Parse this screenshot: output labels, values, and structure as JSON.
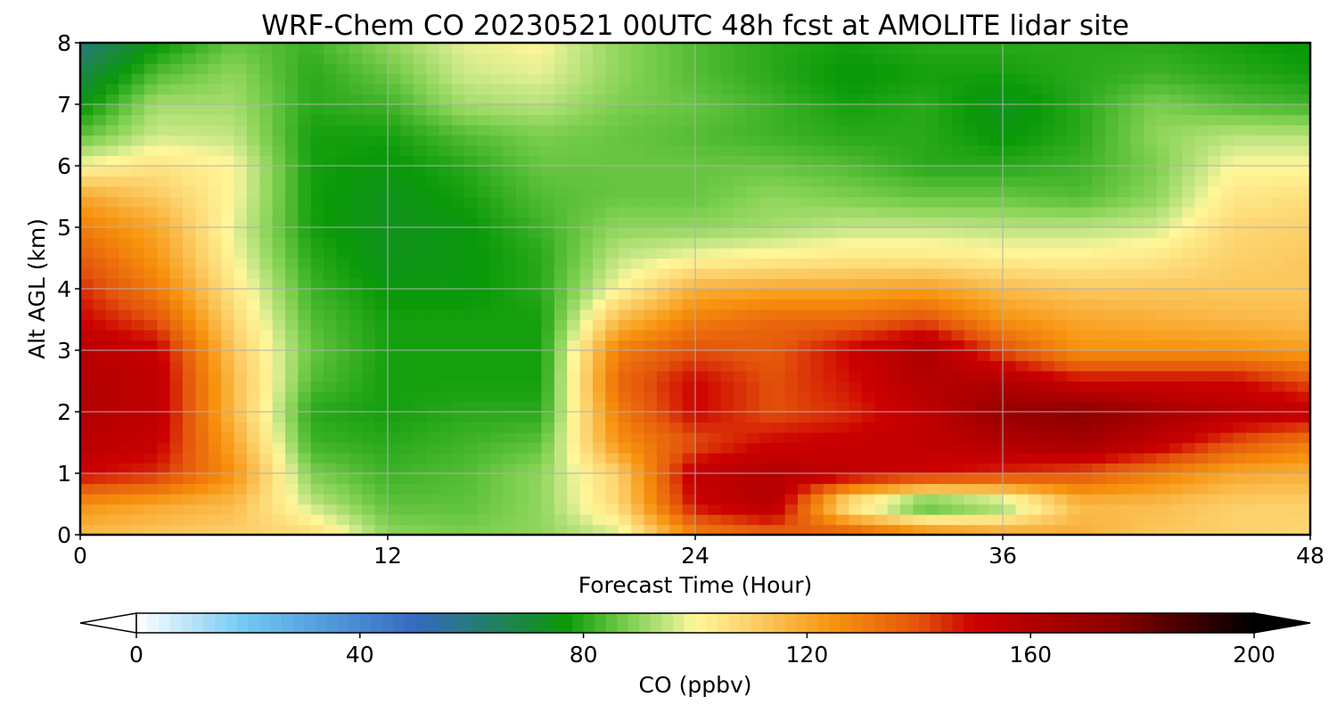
{
  "chart_data": {
    "type": "heatmap",
    "title": "WRF-Chem CO  20230521 00UTC 48h fcst at AMOLITE lidar site",
    "xlabel": "Forecast Time (Hour)",
    "ylabel": "Alt AGL (km)",
    "xlim": [
      0,
      48
    ],
    "ylim": [
      0,
      8
    ],
    "x_ticks": [
      0,
      12,
      24,
      36,
      48
    ],
    "y_ticks": [
      0,
      1,
      2,
      3,
      4,
      5,
      6,
      7,
      8
    ],
    "grid": true,
    "x": [
      0,
      3,
      6,
      9,
      12,
      15,
      18,
      21,
      24,
      27,
      30,
      33,
      36,
      39,
      42,
      45,
      48
    ],
    "y": [
      0,
      0.5,
      1,
      1.5,
      2,
      2.5,
      3,
      3.5,
      4,
      4.5,
      5,
      5.5,
      6,
      6.5,
      7,
      7.5,
      8
    ],
    "z": [
      [
        115,
        112,
        110,
        108,
        90,
        88,
        90,
        96,
        128,
        135,
        140,
        130,
        122,
        118,
        112,
        110,
        108
      ],
      [
        125,
        120,
        115,
        95,
        85,
        85,
        90,
        108,
        150,
        160,
        100,
        78,
        88,
        115,
        115,
        110,
        110
      ],
      [
        150,
        145,
        125,
        88,
        82,
        84,
        90,
        110,
        155,
        160,
        155,
        150,
        145,
        140,
        130,
        120,
        118
      ],
      [
        158,
        152,
        120,
        82,
        80,
        82,
        85,
        125,
        140,
        150,
        152,
        155,
        160,
        165,
        155,
        140,
        130
      ],
      [
        160,
        155,
        115,
        80,
        78,
        80,
        80,
        130,
        150,
        140,
        145,
        155,
        170,
        175,
        165,
        158,
        155
      ],
      [
        160,
        155,
        115,
        84,
        78,
        78,
        78,
        135,
        150,
        140,
        148,
        160,
        160,
        150,
        150,
        150,
        140
      ],
      [
        158,
        152,
        112,
        86,
        78,
        78,
        78,
        130,
        140,
        138,
        150,
        162,
        140,
        125,
        125,
        125,
        122
      ],
      [
        150,
        140,
        108,
        84,
        78,
        78,
        78,
        115,
        130,
        135,
        135,
        140,
        125,
        120,
        118,
        116,
        115
      ],
      [
        145,
        130,
        104,
        82,
        76,
        76,
        80,
        100,
        118,
        120,
        120,
        122,
        115,
        112,
        112,
        112,
        112
      ],
      [
        138,
        124,
        100,
        80,
        74,
        76,
        80,
        95,
        100,
        102,
        104,
        104,
        102,
        102,
        104,
        110,
        112
      ],
      [
        130,
        120,
        98,
        78,
        74,
        76,
        82,
        90,
        90,
        92,
        95,
        95,
        94,
        94,
        96,
        108,
        110
      ],
      [
        120,
        112,
        100,
        78,
        74,
        78,
        84,
        86,
        86,
        90,
        88,
        86,
        86,
        84,
        90,
        104,
        106
      ],
      [
        100,
        105,
        100,
        78,
        76,
        80,
        86,
        86,
        86,
        86,
        84,
        80,
        80,
        82,
        88,
        100,
        100
      ],
      [
        85,
        96,
        95,
        78,
        78,
        84,
        88,
        86,
        84,
        82,
        80,
        80,
        76,
        80,
        90,
        94,
        94
      ],
      [
        75,
        92,
        92,
        80,
        82,
        92,
        94,
        88,
        86,
        82,
        78,
        80,
        74,
        80,
        88,
        84,
        82
      ],
      [
        68,
        84,
        90,
        80,
        86,
        96,
        98,
        90,
        84,
        80,
        76,
        78,
        78,
        80,
        82,
        80,
        78
      ],
      [
        60,
        76,
        86,
        82,
        90,
        98,
        100,
        90,
        84,
        80,
        78,
        80,
        80,
        80,
        80,
        78,
        76
      ]
    ],
    "colorbar": {
      "label": "CO  (ppbv)",
      "vmin": 0,
      "vmax": 200,
      "ticks": [
        0,
        40,
        80,
        120,
        160,
        200
      ],
      "extend": "both",
      "stops": [
        {
          "v": 0,
          "color": "#ffffff"
        },
        {
          "v": 20,
          "color": "#6ec6f2"
        },
        {
          "v": 50,
          "color": "#3569c0"
        },
        {
          "v": 70,
          "color": "#1a8a3a"
        },
        {
          "v": 77,
          "color": "#0a9a08"
        },
        {
          "v": 88,
          "color": "#7ccf4e"
        },
        {
          "v": 96,
          "color": "#cde98a"
        },
        {
          "v": 100,
          "color": "#fff79a"
        },
        {
          "v": 110,
          "color": "#fcd06a"
        },
        {
          "v": 125,
          "color": "#f7920d"
        },
        {
          "v": 140,
          "color": "#e3530c"
        },
        {
          "v": 150,
          "color": "#cc0000"
        },
        {
          "v": 175,
          "color": "#8b0000"
        },
        {
          "v": 200,
          "color": "#000000"
        }
      ]
    }
  }
}
